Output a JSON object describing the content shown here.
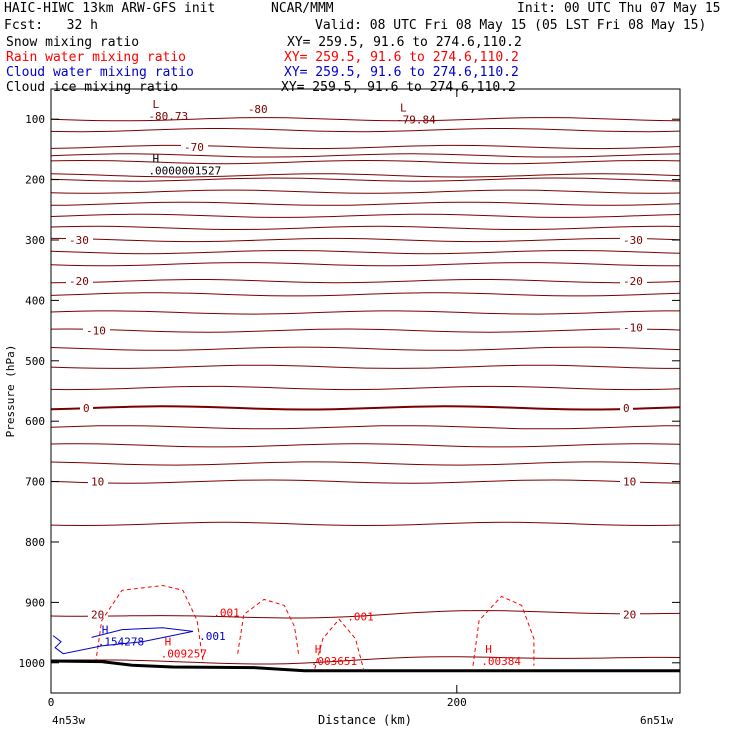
{
  "header": {
    "title_left": "HAIC-HIWC 13km ARW-GFS init",
    "org": "NCAR/MMM",
    "init": "Init: 00 UTC Thu 07 May 15",
    "fcst": "Fcst:   32 h",
    "valid": "Valid: 08 UTC Fri 08 May 15 (05 LST Fri 08 May 15)"
  },
  "legend": [
    {
      "label": "Snow mixing ratio",
      "xy": "XY= 259.5, 91.6 to 274.6,110.2",
      "color": "#000000"
    },
    {
      "label": "Rain water mixing ratio",
      "xy": "XY= 259.5, 91.6 to 274.6,110.2",
      "color": "#ff0000"
    },
    {
      "label": "Cloud water mixing ratio",
      "xy": "XY= 259.5, 91.6 to 274.6,110.2",
      "color": "#0000cc"
    },
    {
      "label": "Cloud ice mixing ratio",
      "xy": "XY= 259.5, 91.6 to 274.6,110.2",
      "color": "#000000"
    }
  ],
  "chart_data": {
    "type": "contour cross-section",
    "ylabel": "Pressure (hPa)",
    "xlabel": "Distance (km)",
    "x_left_label": "4n53w",
    "x_right_label": "6n51w",
    "x_ticks": [
      0,
      200
    ],
    "xlim": [
      0,
      310
    ],
    "y_ticks": [
      100,
      200,
      300,
      400,
      500,
      600,
      700,
      800,
      900,
      1000
    ],
    "ylim": [
      1050,
      50
    ],
    "temperature_color": "#7a0000",
    "isotherms": [
      {
        "p": 100,
        "label": null
      },
      {
        "p": 118,
        "label": null
      },
      {
        "p": 146,
        "label": "-70",
        "label_x": 133
      },
      {
        "p": 160,
        "label": null
      },
      {
        "p": 171,
        "label": null
      },
      {
        "p": 193,
        "label": null
      },
      {
        "p": 200,
        "label": null
      },
      {
        "p": 220,
        "label": null
      },
      {
        "p": 240,
        "label": null
      },
      {
        "p": 260,
        "label": null
      },
      {
        "p": 280,
        "label": null
      },
      {
        "p": 300,
        "label": "-30",
        "label_x": 18
      },
      {
        "p": 320,
        "label": null
      },
      {
        "p": 340,
        "label": null
      },
      {
        "p": 368,
        "label": "-20",
        "label_x": 18
      },
      {
        "p": 390,
        "label": null
      },
      {
        "p": 420,
        "label": null
      },
      {
        "p": 450,
        "label": "-10",
        "label_x": 35
      },
      {
        "p": 480,
        "label": null
      },
      {
        "p": 510,
        "label": null
      },
      {
        "p": 545,
        "label": null
      },
      {
        "p": 578,
        "label": "0",
        "label_x": 32
      },
      {
        "p": 610,
        "label": null
      },
      {
        "p": 640,
        "label": null
      },
      {
        "p": 670,
        "label": null
      },
      {
        "p": 700,
        "label": "10",
        "label_x": 40
      },
      {
        "p": 770,
        "label": null
      },
      {
        "p": 920,
        "label": "20",
        "label_x": 40
      },
      {
        "p": 995,
        "label": null
      }
    ],
    "right_labels": [
      {
        "p": 300,
        "text": "-30"
      },
      {
        "p": 368,
        "text": "-20"
      },
      {
        "p": 445,
        "text": "-10"
      },
      {
        "p": 578,
        "text": "0"
      },
      {
        "p": 700,
        "text": "10"
      },
      {
        "p": 920,
        "text": "20"
      }
    ],
    "extrema": [
      {
        "kind": "L",
        "x": 50,
        "p": 88,
        "value": "-80.73",
        "color": "#7a0000"
      },
      {
        "kind": "L",
        "x": 172,
        "p": 94,
        "value": "-79.84",
        "color": "#7a0000"
      },
      {
        "kind": "H",
        "x": 50,
        "p": 178,
        "value": ".0000001527",
        "color": "#000000"
      },
      {
        "kind": "H",
        "x": 25,
        "p": 958,
        "value": ".154278",
        "color": "#0000cc"
      },
      {
        "kind": "H",
        "x": 56,
        "p": 978,
        "value": ".009257",
        "color": "#ff0000"
      },
      {
        "kind": "H",
        "x": 130,
        "p": 990,
        "value": ".003651",
        "color": "#ff0000"
      },
      {
        "kind": "H",
        "x": 214,
        "p": 990,
        "value": ".00384",
        "color": "#ff0000"
      }
    ],
    "contour_labels": [
      {
        "x": 97,
        "p": 90,
        "text": "-80",
        "color": "#7a0000"
      },
      {
        "x": 80,
        "p": 923,
        "text": ".001",
        "color": "#ff0000"
      },
      {
        "x": 146,
        "p": 930,
        "text": ".001",
        "color": "#ff0000"
      },
      {
        "x": 73,
        "p": 962,
        "text": ".001",
        "color": "#0000cc"
      }
    ],
    "rain_color": "#ff0000",
    "cloud_color": "#0000cc",
    "surface_pressure": [
      [
        0,
        997
      ],
      [
        25,
        998
      ],
      [
        40,
        1004
      ],
      [
        60,
        1007
      ],
      [
        100,
        1008
      ],
      [
        125,
        1013
      ],
      [
        310,
        1013
      ]
    ]
  }
}
